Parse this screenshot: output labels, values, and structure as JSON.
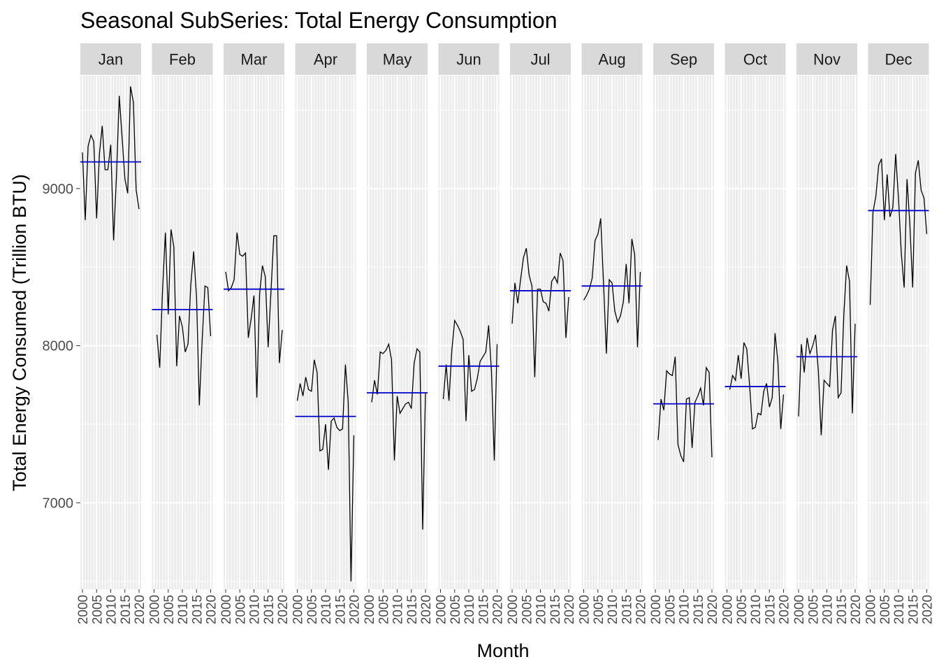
{
  "chart_data": {
    "type": "line",
    "title": "Seasonal SubSeries: Total Energy Consumption",
    "xlabel": "Month",
    "ylabel": "Total Energy Consumed (Trillion BTU)",
    "ylim": [
      6450,
      9720
    ],
    "xlim": [
      2000,
      2020
    ],
    "y_ticks": [
      7000,
      8000,
      9000
    ],
    "y_tick_labels": [
      "7000",
      "8000",
      "9000"
    ],
    "x_ticks": [
      2000,
      2005,
      2010,
      2015,
      2020
    ],
    "x_tick_labels": [
      "2000",
      "2005",
      "2010",
      "2015",
      "2020"
    ],
    "grid": true,
    "colors": {
      "panel_background": "#EBEBEB",
      "strip_background": "#D9D9D9",
      "grid": "#FFFFFF",
      "series_line": "#000000",
      "mean_line": "#0000CD"
    },
    "years": [
      2000,
      2001,
      2002,
      2003,
      2004,
      2005,
      2006,
      2007,
      2008,
      2009,
      2010,
      2011,
      2012,
      2013,
      2014,
      2015,
      2016,
      2017,
      2018,
      2019,
      2020
    ],
    "facets": [
      {
        "label": "Jan",
        "mean": 9170,
        "values": [
          9230,
          8800,
          9270,
          9340,
          9300,
          8810,
          9220,
          9400,
          9120,
          9120,
          9280,
          8670,
          9070,
          9590,
          9330,
          9060,
          8970,
          9650,
          9550,
          8990,
          8870
        ]
      },
      {
        "label": "Feb",
        "mean": 8230,
        "values": [
          null,
          8070,
          7860,
          8360,
          8720,
          8200,
          8740,
          8630,
          7870,
          8190,
          8120,
          7960,
          8010,
          8390,
          8600,
          8310,
          7620,
          8040,
          8380,
          8370,
          8060
        ]
      },
      {
        "label": "Mar",
        "mean": 8360,
        "values": [
          8470,
          8350,
          8370,
          8420,
          8720,
          8580,
          8570,
          8590,
          8050,
          8170,
          8320,
          7670,
          8330,
          8510,
          8440,
          7990,
          8340,
          8700,
          8700,
          7890,
          8100
        ]
      },
      {
        "label": "Apr",
        "mean": 7550,
        "values": [
          7650,
          7760,
          7680,
          7800,
          7720,
          7710,
          7910,
          7830,
          7330,
          7340,
          7500,
          7210,
          7520,
          7540,
          7480,
          7460,
          7470,
          7880,
          7640,
          6500,
          7430
        ]
      },
      {
        "label": "May",
        "mean": 7700,
        "values": [
          null,
          7640,
          7780,
          7690,
          7960,
          7950,
          7970,
          8010,
          7910,
          7270,
          7680,
          7570,
          7600,
          7630,
          7640,
          7600,
          7890,
          7980,
          7960,
          6830,
          7700
        ]
      },
      {
        "label": "Jun",
        "mean": 7870,
        "values": [
          null,
          7660,
          7880,
          7650,
          7970,
          8160,
          8130,
          8090,
          8040,
          7520,
          7940,
          7710,
          7720,
          7790,
          7900,
          7930,
          7960,
          8130,
          7840,
          7270,
          8010
        ]
      },
      {
        "label": "Jul",
        "mean": 8350,
        "values": [
          8140,
          8400,
          8270,
          8420,
          8560,
          8620,
          8450,
          8380,
          7800,
          8360,
          8360,
          8280,
          8270,
          8220,
          8410,
          8440,
          8400,
          8590,
          8540,
          8050,
          8310
        ]
      },
      {
        "label": "Aug",
        "mean": 8380,
        "values": [
          8290,
          8320,
          8360,
          8430,
          8670,
          8710,
          8810,
          8390,
          7950,
          8420,
          8400,
          8220,
          8150,
          8190,
          8280,
          8520,
          8270,
          8680,
          8580,
          7990,
          8470
        ]
      },
      {
        "label": "Sep",
        "mean": 7630,
        "values": [
          null,
          7400,
          7660,
          7590,
          7840,
          7820,
          7810,
          7930,
          7370,
          7300,
          7260,
          7660,
          7670,
          7350,
          7640,
          7680,
          7730,
          7620,
          7860,
          7830,
          7290
        ]
      },
      {
        "label": "Oct",
        "mean": 7740,
        "values": [
          null,
          7720,
          7810,
          7780,
          7940,
          7790,
          8020,
          7980,
          7750,
          7470,
          7480,
          7570,
          7560,
          7710,
          7760,
          7610,
          7670,
          8080,
          7900,
          7470,
          7690
        ]
      },
      {
        "label": "Nov",
        "mean": 7930,
        "values": [
          7550,
          8010,
          7830,
          8050,
          7950,
          8000,
          8070,
          7840,
          7430,
          7780,
          7760,
          7740,
          8100,
          8190,
          7670,
          7700,
          8200,
          8510,
          8410,
          7570,
          8140
        ]
      },
      {
        "label": "Dec",
        "mean": 8860,
        "values": [
          8260,
          8850,
          8950,
          9150,
          9190,
          8800,
          9090,
          8820,
          8880,
          9220,
          8940,
          8590,
          8370,
          9060,
          8780,
          8370,
          9100,
          9180,
          8990,
          8940,
          8710
        ]
      }
    ]
  }
}
